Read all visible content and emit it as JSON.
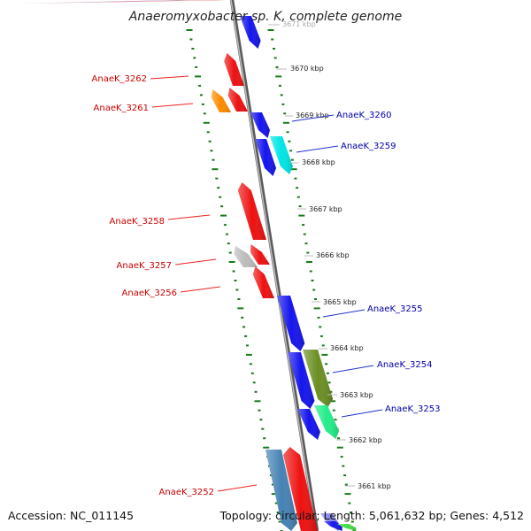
{
  "title": "Anaeromyxobacter sp. K, complete genome",
  "accession": "Accession: NC_011145",
  "topology": "Topology: circular; Length: 5,061,632 bp; Genes: 4,512",
  "colors": {
    "forward_label": "#cc0000",
    "reverse_label": "#0000aa",
    "tick": "#1a7a1a",
    "backbone": "#888888"
  },
  "kbp_labels": [
    "3671 kbp",
    "3670 kbp",
    "3669 kbp",
    "3668 kbp",
    "3667 kbp",
    "3666 kbp",
    "3665 kbp",
    "3664 kbp",
    "3663 kbp",
    "3662 kbp",
    "3661 kbp"
  ],
  "gene_labels": [
    {
      "name": "AnaeK_3262",
      "strand": "forward"
    },
    {
      "name": "AnaeK_3261",
      "strand": "forward"
    },
    {
      "name": "AnaeK_3260",
      "strand": "reverse"
    },
    {
      "name": "AnaeK_3259",
      "strand": "reverse"
    },
    {
      "name": "AnaeK_3258",
      "strand": "forward"
    },
    {
      "name": "AnaeK_3257",
      "strand": "forward"
    },
    {
      "name": "AnaeK_3256",
      "strand": "forward"
    },
    {
      "name": "AnaeK_3255",
      "strand": "reverse"
    },
    {
      "name": "AnaeK_3254",
      "strand": "reverse"
    },
    {
      "name": "AnaeK_3253",
      "strand": "reverse"
    },
    {
      "name": "AnaeK_3252",
      "strand": "forward"
    }
  ],
  "genes": [
    {
      "color": "#7777cc",
      "dir": "down"
    },
    {
      "color": "#ee1111",
      "dir": "down"
    },
    {
      "color": "#1515ee",
      "dir": "down"
    },
    {
      "color": "#ee1111",
      "dir": "up"
    },
    {
      "color": "#ee1111",
      "dir": "up"
    },
    {
      "color": "#ff8a00",
      "dir": "up"
    },
    {
      "color": "#1515ee",
      "dir": "down"
    },
    {
      "color": "#1515ee",
      "dir": "down"
    },
    {
      "color": "#00e5e5",
      "dir": "down"
    },
    {
      "color": "#ee1111",
      "dir": "up"
    },
    {
      "color": "#ee1111",
      "dir": "up"
    },
    {
      "color": "#bbbbbb",
      "dir": "up"
    },
    {
      "color": "#ee1111",
      "dir": "up"
    },
    {
      "color": "#1515ee",
      "dir": "down"
    },
    {
      "color": "#1515ee",
      "dir": "down"
    },
    {
      "color": "#6b8e23",
      "dir": "down"
    },
    {
      "color": "#1515ee",
      "dir": "down"
    },
    {
      "color": "#22ee88",
      "dir": "down"
    },
    {
      "color": "#4682b4",
      "dir": "down"
    },
    {
      "color": "#ee1111",
      "dir": "up"
    },
    {
      "color": "#8888ee",
      "dir": "down"
    },
    {
      "color": "#1515ee",
      "dir": "down"
    },
    {
      "color": "#44dd44",
      "dir": "down"
    }
  ]
}
